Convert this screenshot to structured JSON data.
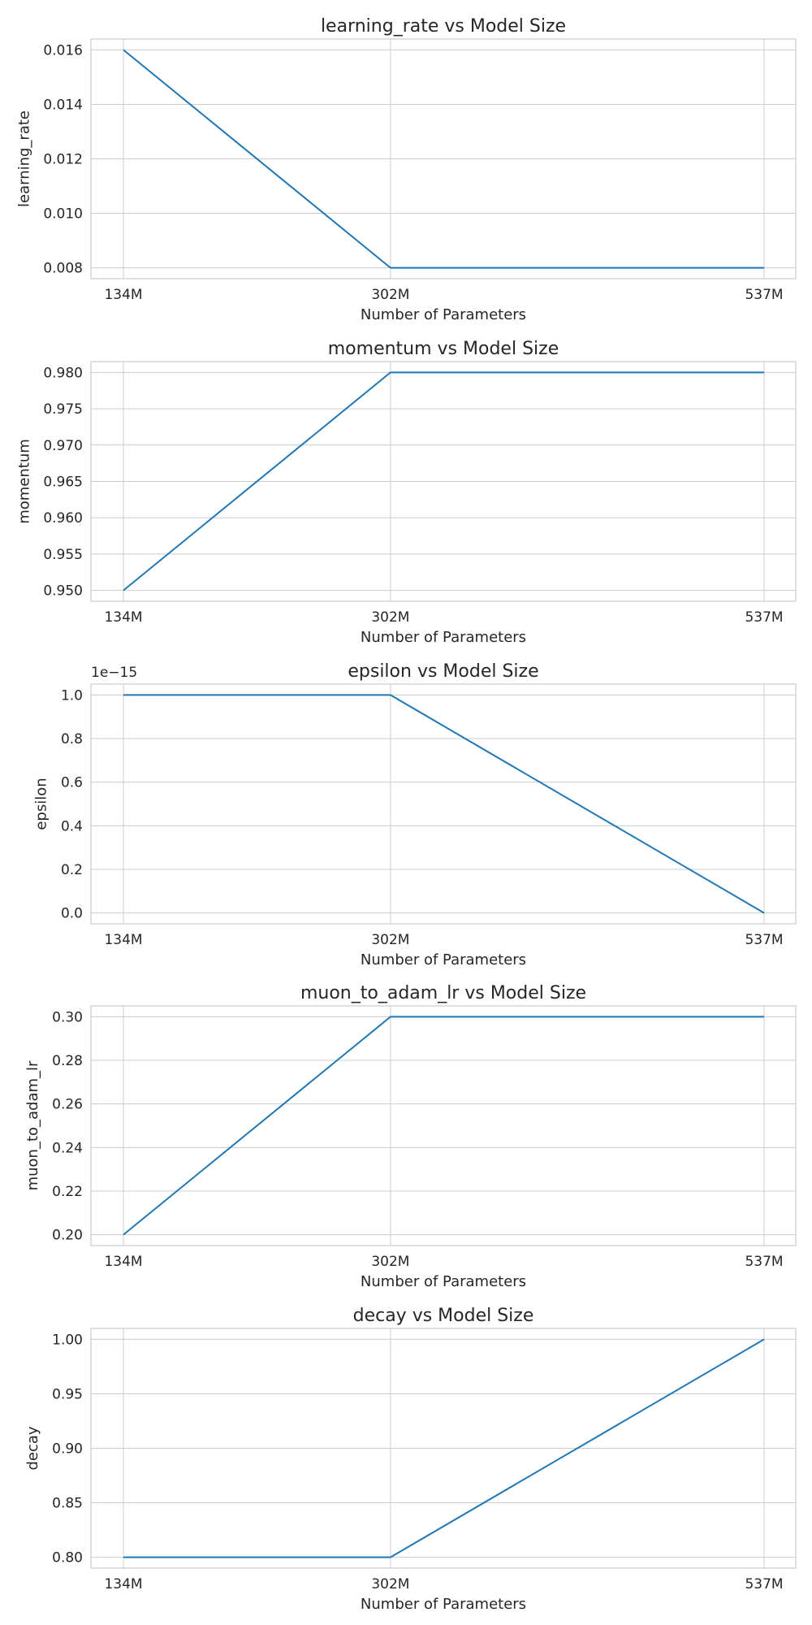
{
  "chart_data": [
    {
      "type": "line",
      "title": "learning_rate vs Model Size",
      "xlabel": "Number of Parameters",
      "ylabel": "learning_rate",
      "categories": [
        "134M",
        "302M",
        "537M"
      ],
      "x": [
        134,
        302,
        537
      ],
      "series": [
        {
          "values": [
            0.016,
            0.008,
            0.008
          ]
        }
      ],
      "ylim": [
        0.0076,
        0.0164
      ],
      "yticks": [
        0.008,
        0.01,
        0.012,
        0.014,
        0.016
      ],
      "ytick_labels": [
        "0.008",
        "0.010",
        "0.012",
        "0.014",
        "0.016"
      ],
      "offset_text": "",
      "grid": true,
      "line_color": "#1f77b4"
    },
    {
      "type": "line",
      "title": "momentum vs Model Size",
      "xlabel": "Number of Parameters",
      "ylabel": "momentum",
      "categories": [
        "134M",
        "302M",
        "537M"
      ],
      "x": [
        134,
        302,
        537
      ],
      "series": [
        {
          "values": [
            0.95,
            0.98,
            0.98
          ]
        }
      ],
      "ylim": [
        0.9485,
        0.9815
      ],
      "yticks": [
        0.95,
        0.955,
        0.96,
        0.965,
        0.97,
        0.975,
        0.98
      ],
      "ytick_labels": [
        "0.950",
        "0.955",
        "0.960",
        "0.965",
        "0.970",
        "0.975",
        "0.980"
      ],
      "offset_text": "",
      "grid": true,
      "line_color": "#1f77b4"
    },
    {
      "type": "line",
      "title": "epsilon vs Model Size",
      "xlabel": "Number of Parameters",
      "ylabel": "epsilon",
      "categories": [
        "134M",
        "302M",
        "537M"
      ],
      "x": [
        134,
        302,
        537
      ],
      "series": [
        {
          "values": [
            1.0,
            1.0,
            0.0
          ]
        }
      ],
      "ylim": [
        -0.05,
        1.05
      ],
      "yticks": [
        0.0,
        0.2,
        0.4,
        0.6,
        0.8,
        1.0
      ],
      "ytick_labels": [
        "0.0",
        "0.2",
        "0.4",
        "0.6",
        "0.8",
        "1.0"
      ],
      "offset_text": "1e−15",
      "grid": true,
      "line_color": "#1f77b4"
    },
    {
      "type": "line",
      "title": "muon_to_adam_lr vs Model Size",
      "xlabel": "Number of Parameters",
      "ylabel": "muon_to_adam_lr",
      "categories": [
        "134M",
        "302M",
        "537M"
      ],
      "x": [
        134,
        302,
        537
      ],
      "series": [
        {
          "values": [
            0.2,
            0.3,
            0.3
          ]
        }
      ],
      "ylim": [
        0.195,
        0.305
      ],
      "yticks": [
        0.2,
        0.22,
        0.24,
        0.26,
        0.28,
        0.3
      ],
      "ytick_labels": [
        "0.20",
        "0.22",
        "0.24",
        "0.26",
        "0.28",
        "0.30"
      ],
      "offset_text": "",
      "grid": true,
      "line_color": "#1f77b4"
    },
    {
      "type": "line",
      "title": "decay vs Model Size",
      "xlabel": "Number of Parameters",
      "ylabel": "decay",
      "categories": [
        "134M",
        "302M",
        "537M"
      ],
      "x": [
        134,
        302,
        537
      ],
      "series": [
        {
          "values": [
            0.8,
            0.8,
            1.0
          ]
        }
      ],
      "ylim": [
        0.79,
        1.01
      ],
      "yticks": [
        0.8,
        0.85,
        0.9,
        0.95,
        1.0
      ],
      "ytick_labels": [
        "0.80",
        "0.85",
        "0.90",
        "0.95",
        "1.00"
      ],
      "offset_text": "",
      "grid": true,
      "line_color": "#1f77b4"
    }
  ]
}
